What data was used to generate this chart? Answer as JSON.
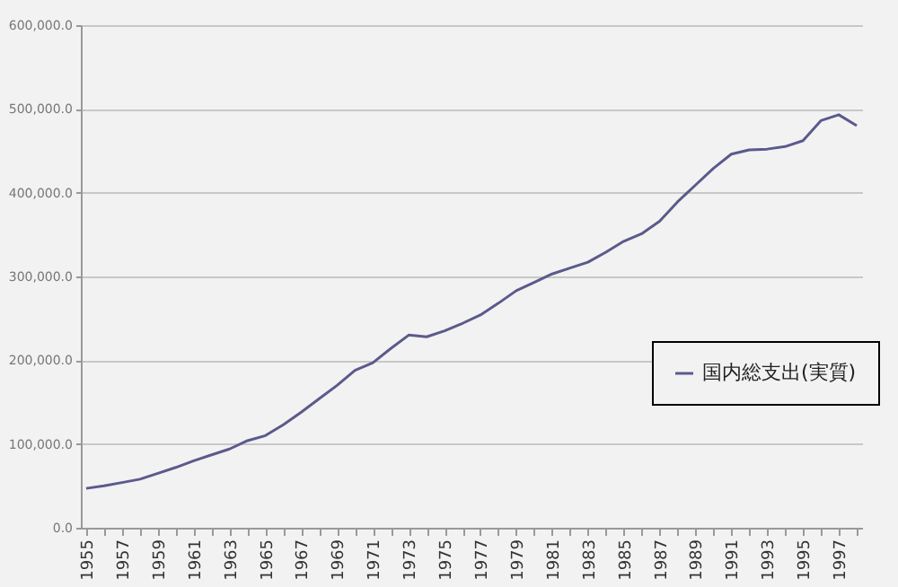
{
  "chart_data": {
    "type": "line",
    "categories": [
      "1955",
      null,
      "1957",
      null,
      "1959",
      null,
      "1961",
      null,
      "1963",
      null,
      "1965",
      null,
      "1967",
      null,
      "1969",
      null,
      "1971",
      null,
      "1973",
      null,
      "1975",
      null,
      "1977",
      null,
      "1979",
      null,
      "1981",
      null,
      "1983",
      null,
      "1985",
      null,
      "1987",
      null,
      "1989",
      null,
      "1991",
      null,
      "1993",
      null,
      "1995",
      null,
      "1997",
      null
    ],
    "series": [
      {
        "name": "国内総支出(実質)",
        "color": "#5b5a8c",
        "values": [
          47000,
          50000,
          54000,
          58000,
          65000,
          72000,
          80000,
          87000,
          94000,
          104000,
          110000,
          123000,
          138000,
          154000,
          170000,
          188000,
          197000,
          214000,
          230000,
          228000,
          235000,
          244000,
          254000,
          268000,
          283000,
          293000,
          303000,
          310000,
          317000,
          329000,
          342000,
          351000,
          366000,
          389000,
          409000,
          429000,
          446000,
          451000,
          452000,
          455000,
          462000,
          486000,
          493000,
          480000
        ]
      }
    ],
    "ylim": [
      0,
      600000
    ],
    "yticks": [
      {
        "value": 0,
        "label": "0.0"
      },
      {
        "value": 100000,
        "label": "100,000.0"
      },
      {
        "value": 200000,
        "label": "200,000.0"
      },
      {
        "value": 300000,
        "label": "300,000.0"
      },
      {
        "value": 400000,
        "label": "400,000.0"
      },
      {
        "value": 500000,
        "label": "500,000.0"
      },
      {
        "value": 600000,
        "label": "600,000.0"
      }
    ],
    "grid": "y",
    "legend": "right",
    "marker": "none",
    "line_style": "solid"
  }
}
